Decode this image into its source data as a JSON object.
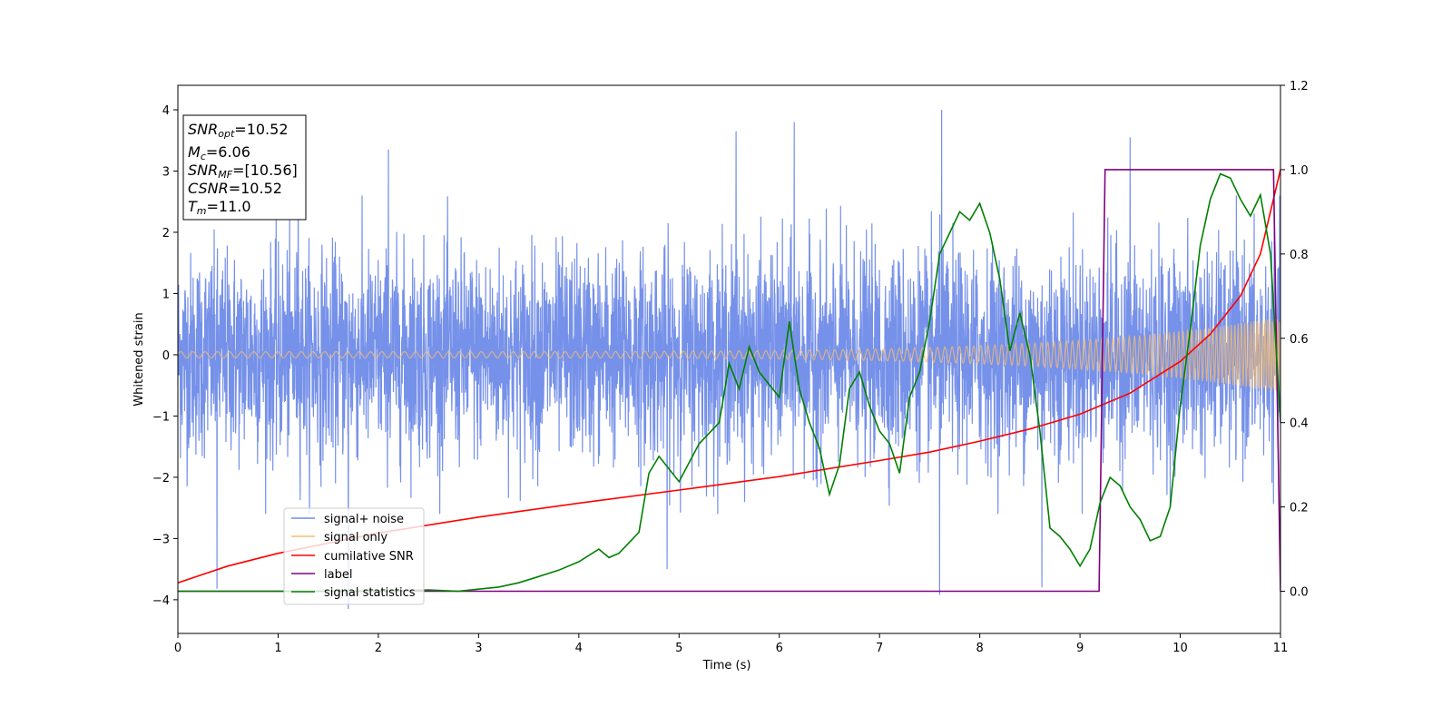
{
  "chart_data": {
    "type": "line",
    "xlabel": "Time (s)",
    "ylabel": "Whitened strain",
    "xlim": [
      0,
      11
    ],
    "ylim": [
      -4.55,
      4.4
    ],
    "y2lim": [
      -0.1,
      1.2
    ],
    "x_ticks": [
      0,
      1,
      2,
      3,
      4,
      5,
      6,
      7,
      8,
      9,
      10,
      11
    ],
    "y_ticks": [
      -4,
      -3,
      -2,
      -1,
      0,
      1,
      2,
      3,
      4
    ],
    "y2_ticks": [
      "0.0",
      "0.2",
      "0.4",
      "0.6",
      "0.8",
      "1.0",
      "1.2"
    ],
    "legend_placement": "lower-left",
    "grid": false,
    "info_box": {
      "snr_opt": {
        "base": "SNR",
        "sub": "opt",
        "value": "=10.52"
      },
      "mc": {
        "base": "M",
        "sub": "c",
        "value": "=6.06"
      },
      "snr_mf": {
        "base": "SNR",
        "sub": "MF",
        "value": "=[10.56]"
      },
      "csnr": {
        "base": "CSNR",
        "value": "=10.52"
      },
      "tm": {
        "base": "T",
        "sub": "m",
        "value": "=11.0"
      }
    },
    "series": [
      {
        "name": "signal+ noise",
        "color": "#6f8be8",
        "axis": "left",
        "kind": "noise",
        "envelope_std": 0.82,
        "extremes": [
          [
            1.2,
            3.3
          ],
          [
            2.1,
            3.35
          ],
          [
            5.57,
            3.65
          ],
          [
            6.15,
            3.8
          ],
          [
            7.62,
            4.0
          ],
          [
            9.5,
            3.55
          ],
          [
            0.39,
            -3.82
          ],
          [
            1.7,
            -4.15
          ],
          [
            7.6,
            -3.92
          ],
          [
            8.62,
            -3.8
          ],
          [
            4.88,
            -3.5
          ]
        ]
      },
      {
        "name": "signal only",
        "color": "#f7be6e",
        "axis": "left",
        "kind": "chirp",
        "amplitude_start": 0.05,
        "amplitude_end": 0.62
      },
      {
        "name": "cumilative SNR",
        "color": "#ff0000",
        "axis": "right",
        "x": [
          0,
          0.5,
          1,
          2,
          3,
          4,
          5,
          6,
          7,
          7.5,
          8,
          8.5,
          9,
          9.5,
          10,
          10.3,
          10.6,
          10.8,
          11
        ],
        "y": [
          0.02,
          0.06,
          0.09,
          0.138,
          0.176,
          0.209,
          0.24,
          0.272,
          0.31,
          0.33,
          0.356,
          0.385,
          0.42,
          0.47,
          0.545,
          0.61,
          0.7,
          0.8,
          1.0
        ]
      },
      {
        "name": "label",
        "color": "#800080",
        "axis": "right",
        "x": [
          0,
          9.19,
          9.25,
          10.93,
          11
        ],
        "y": [
          0,
          0,
          1,
          1,
          0
        ]
      },
      {
        "name": "signal statistics",
        "color": "#008000",
        "axis": "right",
        "x": [
          0,
          1,
          2,
          2.5,
          2.8,
          3.0,
          3.2,
          3.4,
          3.6,
          3.8,
          4.0,
          4.2,
          4.3,
          4.4,
          4.6,
          4.7,
          4.8,
          5.0,
          5.2,
          5.4,
          5.5,
          5.6,
          5.7,
          5.8,
          5.9,
          6.0,
          6.1,
          6.2,
          6.3,
          6.4,
          6.5,
          6.6,
          6.7,
          6.8,
          6.9,
          7.0,
          7.1,
          7.2,
          7.3,
          7.4,
          7.5,
          7.6,
          7.7,
          7.8,
          7.9,
          8.0,
          8.1,
          8.2,
          8.3,
          8.4,
          8.5,
          8.6,
          8.7,
          8.8,
          8.9,
          9.0,
          9.1,
          9.2,
          9.3,
          9.4,
          9.5,
          9.6,
          9.7,
          9.8,
          9.9,
          10.0,
          10.1,
          10.2,
          10.3,
          10.4,
          10.5,
          10.6,
          10.7,
          10.8,
          10.9,
          11.0
        ],
        "y": [
          0.0,
          0.0,
          0.0,
          0.003,
          0.0,
          0.005,
          0.01,
          0.02,
          0.035,
          0.05,
          0.07,
          0.1,
          0.08,
          0.09,
          0.14,
          0.28,
          0.32,
          0.26,
          0.35,
          0.4,
          0.54,
          0.48,
          0.58,
          0.52,
          0.49,
          0.46,
          0.64,
          0.48,
          0.4,
          0.34,
          0.23,
          0.3,
          0.48,
          0.52,
          0.44,
          0.38,
          0.35,
          0.28,
          0.46,
          0.52,
          0.64,
          0.8,
          0.85,
          0.9,
          0.88,
          0.92,
          0.85,
          0.74,
          0.57,
          0.66,
          0.56,
          0.38,
          0.15,
          0.13,
          0.1,
          0.06,
          0.1,
          0.21,
          0.27,
          0.25,
          0.2,
          0.17,
          0.12,
          0.13,
          0.2,
          0.44,
          0.62,
          0.82,
          0.93,
          0.99,
          0.98,
          0.93,
          0.89,
          0.94,
          0.8,
          0.4
        ]
      }
    ]
  }
}
